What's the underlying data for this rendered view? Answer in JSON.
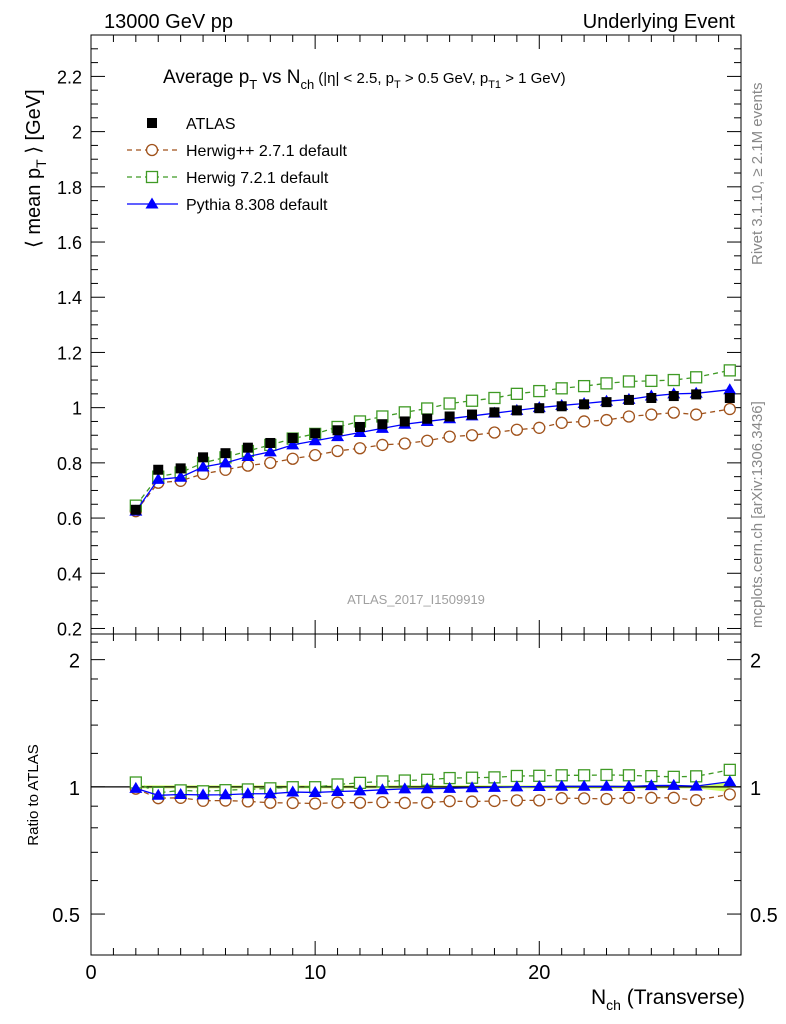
{
  "header": {
    "left": "13000 GeV pp",
    "right": "Underlying Event"
  },
  "side_labels": {
    "upper": "Rivet 3.1.10, ≥ 2.1M events",
    "lower": "mcplots.cern.ch [arXiv:1306.3436]"
  },
  "watermark": "ATLAS_2017_I1509919",
  "colors": {
    "data": "#000000",
    "herwigpp": "#a0521b",
    "herwig7": "#3f9a25",
    "pythia": "#0000ff",
    "band": "#ccff66"
  },
  "chart_data": [
    {
      "type": "scatter",
      "title_parts": {
        "a": "Average p",
        "a_sub": "T",
        "b": " vs N",
        "b_sub": "ch",
        "cut": "(|η| < 2.5, p",
        "cut_sub1": "T",
        "cut_mid": " > 0.5 GeV, p",
        "cut_sub2": "T1",
        "cut_end": " > 1 GeV)"
      },
      "ylabel_parts": {
        "a": "⟨ mean p",
        "sub": "T",
        "b": " ⟩ [GeV]"
      },
      "xlim": [
        0,
        29
      ],
      "ylim": [
        0.18,
        2.35
      ],
      "y_ticks": [
        "0.2",
        "0.4",
        "0.6",
        "0.8",
        "1",
        "1.2",
        "1.4",
        "1.6",
        "1.8",
        "2",
        "2.2"
      ],
      "x": [
        2,
        3,
        4,
        5,
        6,
        7,
        8,
        9,
        10,
        11,
        12,
        13,
        14,
        15,
        16,
        17,
        18,
        19,
        20,
        21,
        22,
        23,
        24,
        25,
        26,
        27,
        28.5
      ],
      "series": [
        {
          "name": "ATLAS",
          "key": "data",
          "values": [
            0.63,
            0.775,
            0.78,
            0.82,
            0.835,
            0.855,
            0.872,
            0.89,
            0.907,
            0.918,
            0.93,
            0.94,
            0.95,
            0.96,
            0.968,
            0.975,
            0.983,
            0.99,
            0.998,
            1.005,
            1.012,
            1.02,
            1.028,
            1.035,
            1.042,
            1.048,
            1.035
          ]
        },
        {
          "name": "Herwig++ 2.7.1 default",
          "key": "herwigpp",
          "values": [
            0.625,
            0.728,
            0.735,
            0.76,
            0.775,
            0.79,
            0.8,
            0.815,
            0.828,
            0.843,
            0.853,
            0.865,
            0.87,
            0.88,
            0.895,
            0.9,
            0.91,
            0.92,
            0.927,
            0.945,
            0.95,
            0.955,
            0.968,
            0.975,
            0.982,
            0.975,
            0.995
          ]
        },
        {
          "name": "Herwig 7.2.1 default",
          "key": "herwig7",
          "values": [
            0.645,
            0.75,
            0.765,
            0.8,
            0.82,
            0.843,
            0.865,
            0.888,
            0.905,
            0.93,
            0.95,
            0.968,
            0.983,
            0.997,
            1.015,
            1.025,
            1.035,
            1.05,
            1.06,
            1.07,
            1.078,
            1.088,
            1.095,
            1.097,
            1.1,
            1.11,
            1.135
          ]
        },
        {
          "name": "Pythia 8.308 default",
          "key": "pythia",
          "values": [
            0.625,
            0.74,
            0.748,
            0.785,
            0.8,
            0.823,
            0.84,
            0.865,
            0.88,
            0.895,
            0.91,
            0.925,
            0.94,
            0.95,
            0.96,
            0.97,
            0.98,
            0.99,
            1.0,
            1.008,
            1.015,
            1.023,
            1.03,
            1.042,
            1.05,
            1.052,
            1.065
          ]
        }
      ],
      "legend_placement": "top-left"
    },
    {
      "type": "scatter",
      "ylabel": "Ratio to ATLAS",
      "y_scale": "log",
      "ylim": [
        0.4,
        2.3
      ],
      "y_ticks": [
        "0.5",
        "1",
        "2"
      ],
      "y_ticks_right": [
        "0.5",
        "1",
        "2"
      ],
      "xlabel_parts": {
        "a": "N",
        "sub": "ch",
        "b": " (Transverse)"
      },
      "xlim": [
        0,
        29
      ],
      "x_ticks": [
        "0",
        "10",
        "20"
      ],
      "x": [
        2,
        3,
        4,
        5,
        6,
        7,
        8,
        9,
        10,
        11,
        12,
        13,
        14,
        15,
        16,
        17,
        18,
        19,
        20,
        21,
        22,
        23,
        24,
        25,
        26,
        27,
        28.5
      ],
      "series": [
        {
          "key": "herwigpp",
          "values": [
            0.99,
            0.94,
            0.942,
            0.927,
            0.928,
            0.924,
            0.917,
            0.916,
            0.913,
            0.918,
            0.917,
            0.92,
            0.916,
            0.917,
            0.925,
            0.923,
            0.926,
            0.929,
            0.929,
            0.94,
            0.939,
            0.936,
            0.942,
            0.942,
            0.942,
            0.93,
            0.96
          ]
        },
        {
          "key": "herwig7",
          "values": [
            1.024,
            0.968,
            0.981,
            0.976,
            0.982,
            0.986,
            0.992,
            0.998,
            0.998,
            1.013,
            1.022,
            1.03,
            1.035,
            1.039,
            1.049,
            1.051,
            1.053,
            1.061,
            1.062,
            1.065,
            1.065,
            1.067,
            1.065,
            1.06,
            1.056,
            1.059,
            1.097
          ]
        },
        {
          "key": "pythia",
          "values": [
            0.992,
            0.955,
            0.959,
            0.957,
            0.958,
            0.963,
            0.963,
            0.972,
            0.97,
            0.975,
            0.978,
            0.984,
            0.989,
            0.99,
            0.992,
            0.995,
            0.997,
            1.0,
            1.002,
            1.003,
            1.003,
            1.003,
            1.002,
            1.007,
            1.008,
            1.004,
            1.029
          ]
        }
      ]
    }
  ]
}
